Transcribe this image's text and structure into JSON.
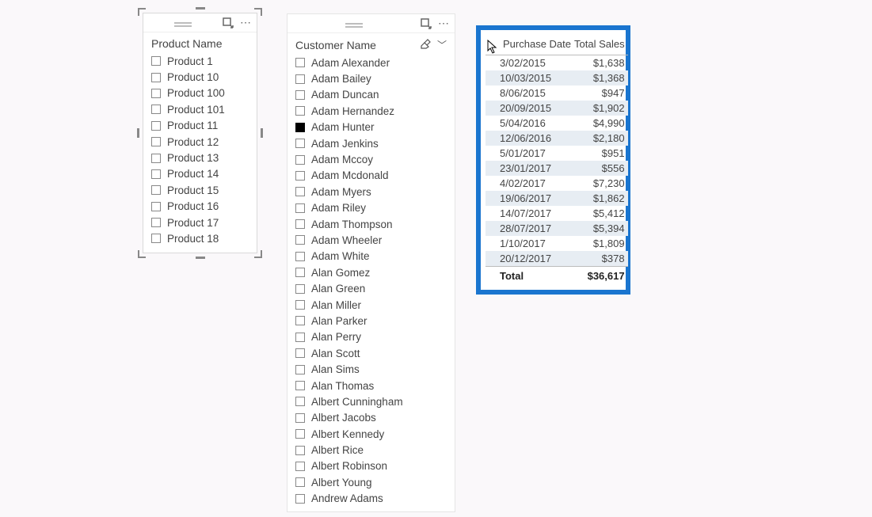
{
  "background_color": "#faf8fa",
  "product_slicer": {
    "title": "Product Name",
    "selected_visual": true,
    "items": [
      {
        "label": "Product 1",
        "checked": false
      },
      {
        "label": "Product 10",
        "checked": false
      },
      {
        "label": "Product 100",
        "checked": false
      },
      {
        "label": "Product 101",
        "checked": false
      },
      {
        "label": "Product 11",
        "checked": false
      },
      {
        "label": "Product 12",
        "checked": false
      },
      {
        "label": "Product 13",
        "checked": false
      },
      {
        "label": "Product 14",
        "checked": false
      },
      {
        "label": "Product 15",
        "checked": false
      },
      {
        "label": "Product 16",
        "checked": false
      },
      {
        "label": "Product 17",
        "checked": false
      },
      {
        "label": "Product 18",
        "checked": false
      }
    ]
  },
  "customer_slicer": {
    "title": "Customer Name",
    "show_clear_icon": true,
    "show_chevron": true,
    "items": [
      {
        "label": "Adam Alexander",
        "checked": false
      },
      {
        "label": "Adam Bailey",
        "checked": false
      },
      {
        "label": "Adam Duncan",
        "checked": false
      },
      {
        "label": "Adam Hernandez",
        "checked": false
      },
      {
        "label": "Adam Hunter",
        "checked": true
      },
      {
        "label": "Adam Jenkins",
        "checked": false
      },
      {
        "label": "Adam Mccoy",
        "checked": false
      },
      {
        "label": "Adam Mcdonald",
        "checked": false
      },
      {
        "label": "Adam Myers",
        "checked": false
      },
      {
        "label": "Adam Riley",
        "checked": false
      },
      {
        "label": "Adam Thompson",
        "checked": false
      },
      {
        "label": "Adam Wheeler",
        "checked": false
      },
      {
        "label": "Adam White",
        "checked": false
      },
      {
        "label": "Alan Gomez",
        "checked": false
      },
      {
        "label": "Alan Green",
        "checked": false
      },
      {
        "label": "Alan Miller",
        "checked": false
      },
      {
        "label": "Alan Parker",
        "checked": false
      },
      {
        "label": "Alan Perry",
        "checked": false
      },
      {
        "label": "Alan Scott",
        "checked": false
      },
      {
        "label": "Alan Sims",
        "checked": false
      },
      {
        "label": "Alan Thomas",
        "checked": false
      },
      {
        "label": "Albert Cunningham",
        "checked": false
      },
      {
        "label": "Albert Jacobs",
        "checked": false
      },
      {
        "label": "Albert Kennedy",
        "checked": false
      },
      {
        "label": "Albert Rice",
        "checked": false
      },
      {
        "label": "Albert Robinson",
        "checked": false
      },
      {
        "label": "Albert Young",
        "checked": false
      },
      {
        "label": "Andrew Adams",
        "checked": false
      }
    ]
  },
  "sales_table": {
    "type": "table",
    "highlight_border_color": "#1a75cf",
    "highlight_border_width": 6,
    "alt_row_color": "#e7edf3",
    "header_font_size": 13,
    "cell_font_size": 13,
    "columns": [
      {
        "label": "Purchase Date",
        "align": "left"
      },
      {
        "label": "Total Sales",
        "align": "right"
      }
    ],
    "rows": [
      [
        "3/02/2015",
        "$1,638"
      ],
      [
        "10/03/2015",
        "$1,368"
      ],
      [
        "8/06/2015",
        "$947"
      ],
      [
        "20/09/2015",
        "$1,902"
      ],
      [
        "5/04/2016",
        "$4,990"
      ],
      [
        "12/06/2016",
        "$2,180"
      ],
      [
        "5/01/2017",
        "$951"
      ],
      [
        "23/01/2017",
        "$556"
      ],
      [
        "4/02/2017",
        "$7,230"
      ],
      [
        "19/06/2017",
        "$1,862"
      ],
      [
        "14/07/2017",
        "$5,412"
      ],
      [
        "28/07/2017",
        "$5,394"
      ],
      [
        "1/10/2017",
        "$1,809"
      ],
      [
        "20/12/2017",
        "$378"
      ]
    ],
    "total_row": [
      "Total",
      "$36,617"
    ]
  }
}
